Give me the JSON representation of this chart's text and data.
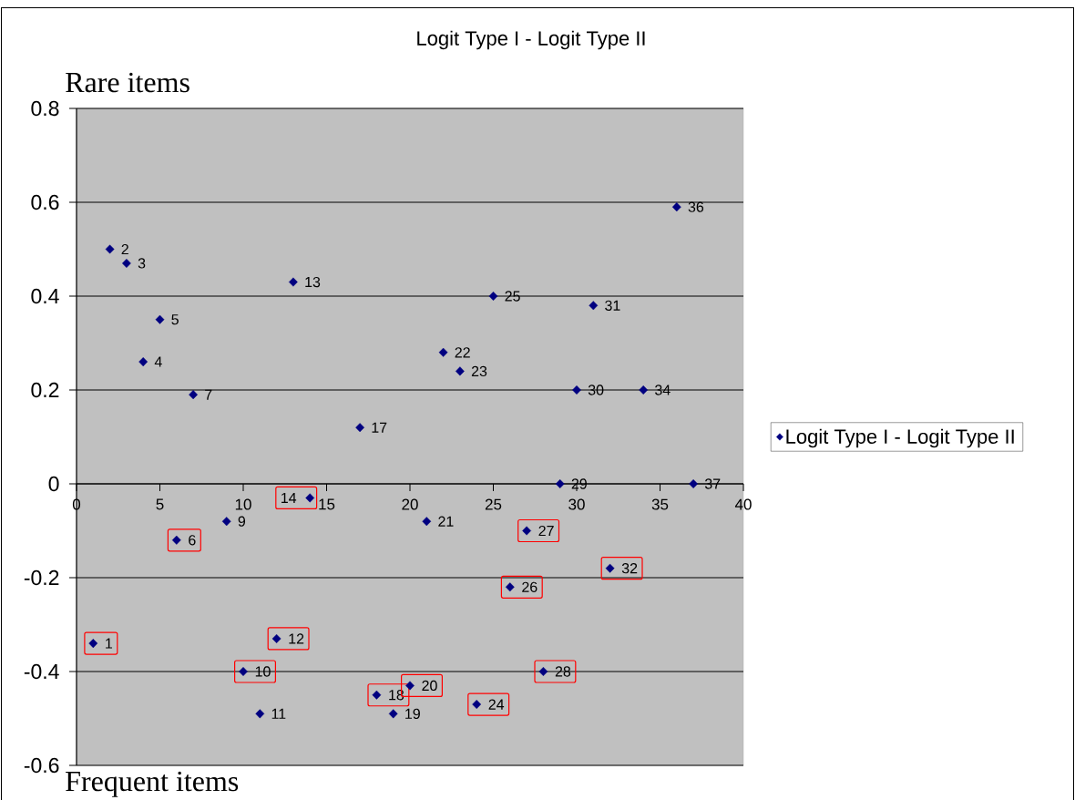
{
  "chart_data": {
    "type": "scatter",
    "title": "Logit Type I - Logit Type II",
    "annotations": [
      "Rare items",
      "Frequent items",
      {
        "text": "1",
        "x": 1,
        "y": -0.34
      },
      {
        "text": "2",
        "x": 2,
        "y": 0.5
      },
      {
        "text": "3",
        "x": 3,
        "y": 0.47
      },
      {
        "text": "4",
        "x": 4,
        "y": 0.26
      },
      {
        "text": "5",
        "x": 5,
        "y": 0.35
      },
      {
        "text": "6",
        "x": 6,
        "y": -0.12
      },
      {
        "text": "7",
        "x": 7,
        "y": 0.19
      },
      {
        "text": "9",
        "x": 9,
        "y": -0.08
      },
      {
        "text": "10",
        "x": 10,
        "y": -0.4
      },
      {
        "text": "11",
        "x": 11,
        "y": -0.49
      },
      {
        "text": "12",
        "x": 12,
        "y": -0.33
      },
      {
        "text": "13",
        "x": 13,
        "y": 0.43
      },
      {
        "text": "14",
        "x": 14,
        "y": -0.03
      },
      {
        "text": "17",
        "x": 17,
        "y": 0.12
      },
      {
        "text": "18",
        "x": 18,
        "y": -0.45
      },
      {
        "text": "19",
        "x": 19,
        "y": -0.49
      },
      {
        "text": "20",
        "x": 20,
        "y": -0.43
      },
      {
        "text": "21",
        "x": 21,
        "y": -0.08
      },
      {
        "text": "22",
        "x": 22,
        "y": 0.28
      },
      {
        "text": "23",
        "x": 23,
        "y": 0.24
      },
      {
        "text": "24",
        "x": 24,
        "y": -0.47
      },
      {
        "text": "25",
        "x": 25,
        "y": 0.4
      },
      {
        "text": "26",
        "x": 26,
        "y": -0.22
      },
      {
        "text": "27",
        "x": 27,
        "y": -0.1
      },
      {
        "text": "28",
        "x": 28,
        "y": -0.4
      },
      {
        "text": "29",
        "x": 29,
        "y": 0
      },
      {
        "text": "30",
        "x": 30,
        "y": 0.2
      },
      {
        "text": "31",
        "x": 31,
        "y": 0.38
      },
      {
        "text": "32",
        "x": 32,
        "y": -0.18
      },
      {
        "text": "34",
        "x": 34,
        "y": 0.2
      },
      {
        "text": "36",
        "x": 36,
        "y": 0.59
      },
      {
        "text": "37",
        "x": 37,
        "y": 0
      }
    ],
    "series": [
      {
        "name": "Logit Type I - Logit Type II",
        "color": "#000080",
        "x": [
          2,
          3,
          4,
          5,
          7,
          9,
          11,
          13,
          17,
          19,
          21,
          22,
          23,
          25,
          29,
          30,
          31,
          34,
          36,
          37
        ],
        "values": [
          0.5,
          0.47,
          0.26,
          0.35,
          0.19,
          -0.08,
          -0.49,
          0.43,
          0.12,
          -0.49,
          -0.08,
          0.28,
          0.24,
          0.4,
          0,
          0.2,
          0.38,
          0.2,
          0.59,
          0
        ]
      },
      {
        "color": "#000080",
        "x": [
          1,
          6,
          10,
          12,
          14,
          18,
          20,
          24,
          26,
          27,
          28,
          32
        ],
        "values": [
          -0.34,
          -0.12,
          -0.4,
          -0.33,
          -0.03,
          -0.45,
          -0.43,
          -0.47,
          -0.22,
          -0.1,
          -0.4,
          -0.18
        ]
      }
    ],
    "xlim": [
      0,
      40
    ],
    "ylim": [
      -0.6,
      0.8
    ],
    "xticks": [
      0,
      5,
      10,
      15,
      20,
      25,
      30,
      35,
      40
    ],
    "yticks": [
      -0.6,
      -0.4,
      -0.2,
      0,
      0.2,
      0.4,
      0.6,
      0.8
    ],
    "grid": "y",
    "legend": "right",
    "marker": "diamond"
  }
}
